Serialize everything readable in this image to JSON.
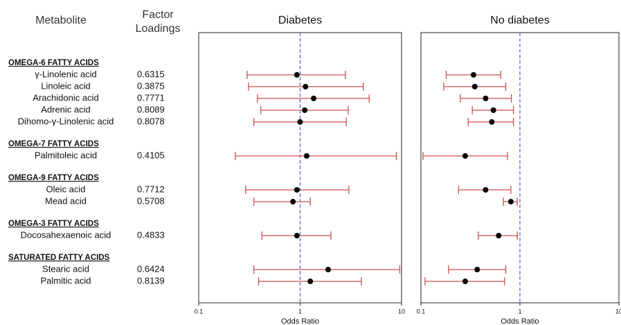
{
  "chart_data": {
    "type": "forest",
    "column_headers": [
      "Metabolite",
      "Factor Loadings"
    ],
    "groups": [
      {
        "name": "OMEGA-6 FATTY ACIDS",
        "metabolites": [
          "γ-Linolenic acid",
          "Linoleic acid",
          "Arachidonic acid",
          "Adrenic acid",
          "Dihomo-γ-Linolenic acid"
        ],
        "loadings": [
          0.6315,
          0.3875,
          0.7771,
          0.8089,
          0.8078
        ]
      },
      {
        "name": "OMEGA-7 FATTY ACIDS",
        "metabolites": [
          "Palmitoleic acid"
        ],
        "loadings": [
          0.4105
        ]
      },
      {
        "name": "OMEGA-9 FATTY ACIDS",
        "metabolites": [
          "Oleic acid",
          "Mead acid"
        ],
        "loadings": [
          0.7712,
          0.5708
        ]
      },
      {
        "name": "OMEGA-3 FATTY ACIDS",
        "metabolites": [
          "Docosahexaenoic acid"
        ],
        "loadings": [
          0.4833
        ]
      },
      {
        "name": "SATURATED FATTY ACIDS",
        "metabolites": [
          "Stearic acid",
          "Palmitic acid"
        ],
        "loadings": [
          0.6424,
          0.8139
        ]
      }
    ],
    "panels": [
      {
        "title": "Diabetes",
        "or": [
          [
            0.93,
            1.13,
            1.36,
            1.11,
            1.0
          ],
          [
            1.16
          ],
          [
            0.93,
            0.85
          ],
          [
            0.93
          ],
          [
            1.89,
            1.26
          ]
        ],
        "lower": [
          [
            0.3,
            0.31,
            0.38,
            0.41,
            0.35
          ],
          [
            0.23
          ],
          [
            0.29,
            0.35
          ],
          [
            0.42
          ],
          [
            0.35,
            0.39
          ]
        ],
        "upper": [
          [
            2.8,
            4.2,
            4.8,
            2.98,
            2.85
          ],
          [
            8.9
          ],
          [
            3.03,
            1.26
          ],
          [
            2.01
          ],
          [
            9.6,
            4.02
          ]
        ]
      },
      {
        "title": "No diabetes",
        "or": [
          [
            0.34,
            0.35,
            0.45,
            0.54,
            0.52
          ],
          [
            0.28
          ],
          [
            0.45,
            0.81
          ],
          [
            0.61
          ],
          [
            0.37,
            0.28
          ]
        ],
        "lower": [
          [
            0.18,
            0.17,
            0.25,
            0.33,
            0.3
          ],
          [
            0.105
          ],
          [
            0.24,
            0.68
          ],
          [
            0.38
          ],
          [
            0.19,
            0.11
          ]
        ],
        "upper": [
          [
            0.64,
            0.72,
            0.82,
            0.86,
            0.86
          ],
          [
            0.75
          ],
          [
            0.81,
            0.94
          ],
          [
            0.94
          ],
          [
            0.72,
            0.7
          ]
        ]
      }
    ],
    "xlabel": "Odds Ratio",
    "log_x": true,
    "xlim": [
      0.1,
      10
    ],
    "xticks": [
      0.1,
      1,
      10
    ],
    "reference": 1,
    "point_color": "#000000",
    "ci_color": "#c9504a",
    "reference_color": "#5a5ad8"
  }
}
